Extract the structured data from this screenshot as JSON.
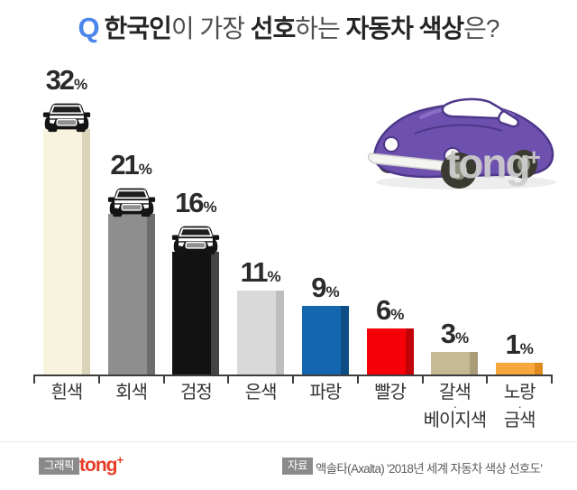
{
  "title": {
    "q_label": "Q",
    "segments": [
      {
        "text": "한국인",
        "bold": true
      },
      {
        "text": "이 가장 ",
        "bold": false
      },
      {
        "text": "선호",
        "bold": true
      },
      {
        "text": "하는 ",
        "bold": false
      },
      {
        "text": "자동차 색상",
        "bold": true
      },
      {
        "text": "은?",
        "bold": false
      }
    ],
    "full_text": "Q 한국인이 가장 선호하는 자동차 색상은?"
  },
  "chart_data": {
    "type": "bar",
    "title": "한국인이 가장 선호하는 자동차 색상은?",
    "unit": "%",
    "categories": [
      "흰색",
      "회색",
      "검정",
      "은색",
      "파랑",
      "빨강",
      "갈색·베이지색",
      "노랑·금색"
    ],
    "category_label_lines": [
      [
        "흰색"
      ],
      [
        "회색"
      ],
      [
        "검정"
      ],
      [
        "은색"
      ],
      [
        "파랑"
      ],
      [
        "빨강"
      ],
      [
        "갈색",
        "베이지색"
      ],
      [
        "노랑",
        "금색"
      ]
    ],
    "line_separator": "·",
    "values": [
      32,
      21,
      16,
      11,
      9,
      6,
      3,
      1
    ],
    "value_labels": [
      "32%",
      "21%",
      "16%",
      "11%",
      "9%",
      "6%",
      "3%",
      "1%"
    ],
    "bar_fill_colors": [
      "#f7f3de",
      "#8e8e8e",
      "#121212",
      "#d9d9d9",
      "#1467ae",
      "#f50008",
      "#c7b994",
      "#f7a73c"
    ],
    "bar_shade_colors": [
      "#d9d4ba",
      "#6d6d6d",
      "#454545",
      "#bebebe",
      "#0d4c84",
      "#c10007",
      "#aa9c78",
      "#e0891d"
    ],
    "car_icon_on_bars": [
      true,
      true,
      true,
      false,
      false,
      false,
      false,
      false
    ],
    "ylim": [
      0,
      34
    ],
    "grid": false,
    "legend": "none"
  },
  "illustration": {
    "name": "purple-beetle-car",
    "body_color": "#6e51ae",
    "outline_color": "#4d3789",
    "highlight_color": "#8a6fc6",
    "wheel_color": "#3a3a30",
    "hub_color": "#8f8f80",
    "watermark_text": "tong",
    "watermark_plus": "+"
  },
  "footer": {
    "left_badge": "그래픽",
    "left_logo_text": "tong",
    "left_logo_plus": "+",
    "right_badge": "자료",
    "source_text": "액솔타(Axalta) '2018년 세계 자동차 색상 선호도'"
  },
  "colors": {
    "q_blue": "#4c86ea",
    "axis": "#3d3d3d",
    "pct_label": "#2b2b2b",
    "tong_red": "#e73c25",
    "badge_gray": "#8a8a8a"
  }
}
